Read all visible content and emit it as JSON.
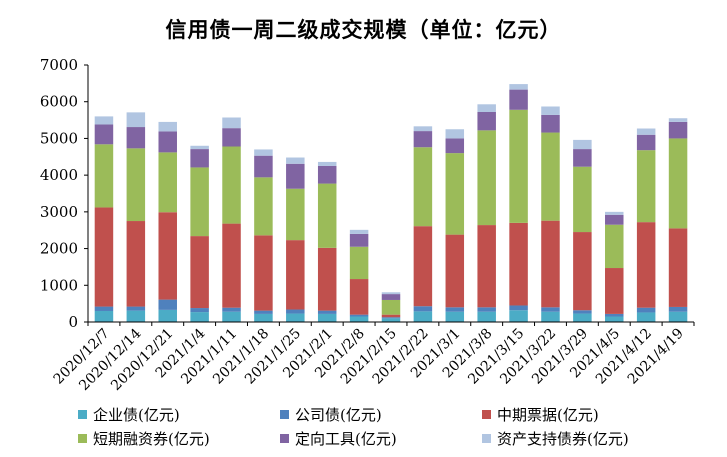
{
  "chart_data": {
    "type": "bar",
    "stacked": true,
    "title": "信用债一周二级成交规模（单位：亿元）",
    "xlabel": "",
    "ylabel": "",
    "ylim": [
      0,
      7000
    ],
    "yticks": [
      "0",
      "1000",
      "2000",
      "3000",
      "4000",
      "5000",
      "6000",
      "7000"
    ],
    "grid": false,
    "legend_position": "bottom",
    "categories": [
      "2020/12/7",
      "2020/12/14",
      "2020/12/21",
      "2021/1/4",
      "2021/1/11",
      "2021/1/18",
      "2021/1/25",
      "2021/2/1",
      "2021/2/8",
      "2021/2/15",
      "2021/2/22",
      "2021/3/1",
      "2021/3/8",
      "2021/3/15",
      "2021/3/22",
      "2021/3/29",
      "2021/4/5",
      "2021/4/12",
      "2021/4/19"
    ],
    "series": [
      {
        "name": "企业债(亿元)",
        "color": "#4BACC6",
        "values": [
          300,
          310,
          330,
          270,
          280,
          220,
          230,
          220,
          150,
          100,
          290,
          280,
          280,
          320,
          280,
          230,
          150,
          260,
          280
        ]
      },
      {
        "name": "公司债(亿元)",
        "color": "#4F81BD",
        "values": [
          120,
          110,
          280,
          110,
          110,
          90,
          110,
          90,
          50,
          30,
          140,
          120,
          120,
          130,
          120,
          90,
          70,
          130,
          130
        ]
      },
      {
        "name": "中期票据(亿元)",
        "color": "#C0504D",
        "values": [
          2700,
          2330,
          2380,
          1960,
          2290,
          2050,
          1890,
          1710,
          970,
          70,
          2180,
          1980,
          2240,
          2250,
          2360,
          2130,
          1250,
          2330,
          2140
        ]
      },
      {
        "name": "短期融资券(亿元)",
        "color": "#9BBB59",
        "values": [
          1720,
          1980,
          1630,
          1870,
          2100,
          1580,
          1400,
          1750,
          880,
          400,
          2150,
          2220,
          2580,
          3080,
          2400,
          1780,
          1180,
          1960,
          2450
        ]
      },
      {
        "name": "定向工具(亿元)",
        "color": "#8064A2",
        "values": [
          540,
          580,
          570,
          500,
          500,
          590,
          680,
          480,
          350,
          160,
          440,
          400,
          500,
          550,
          480,
          480,
          270,
          420,
          450
        ]
      },
      {
        "name": "资产支持债券(亿元)",
        "color": "#B1C5E1",
        "values": [
          220,
          400,
          260,
          90,
          290,
          170,
          170,
          110,
          110,
          50,
          130,
          250,
          210,
          150,
          230,
          250,
          80,
          170,
          100
        ]
      }
    ]
  }
}
